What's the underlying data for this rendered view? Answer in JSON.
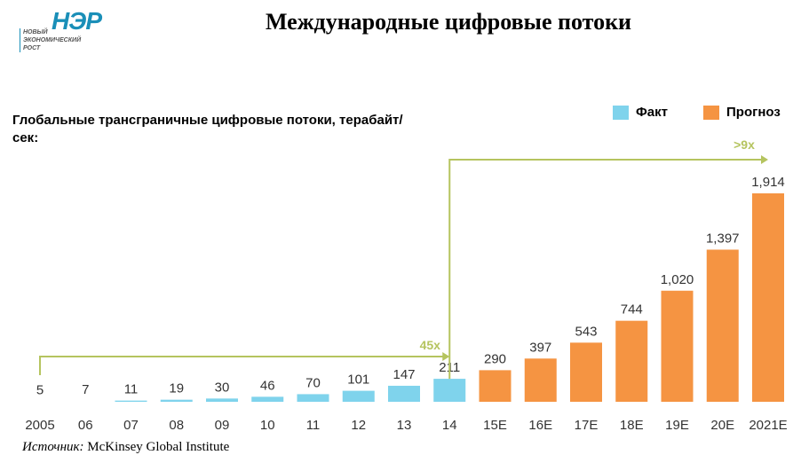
{
  "header": {
    "title": "Международные цифровые потоки",
    "logo_main": "НЭР",
    "logo_sub": [
      "НОВЫЙ",
      "ЭКОНОМИЧЕСКИЙ",
      "РОСТ"
    ]
  },
  "footer": {
    "source_label": "Источник:",
    "source_text": " McKinsey Global Institute"
  },
  "chart_data": {
    "type": "bar",
    "title": "Глобальные трансграничные цифровые потоки, терабайт/сек:",
    "categories": [
      "2005",
      "06",
      "07",
      "08",
      "09",
      "10",
      "11",
      "12",
      "13",
      "14",
      "15E",
      "16E",
      "17E",
      "18E",
      "19E",
      "20E",
      "2021E"
    ],
    "values": [
      5,
      7,
      11,
      19,
      30,
      46,
      70,
      101,
      147,
      211,
      290,
      397,
      543,
      744,
      1020,
      1397,
      1914
    ],
    "data_labels": [
      "5",
      "7",
      "11",
      "19",
      "30",
      "46",
      "70",
      "101",
      "147",
      "211",
      "290",
      "397",
      "543",
      "744",
      "1,020",
      "1,397",
      "1,914"
    ],
    "series_type": [
      "fact",
      "fact",
      "fact",
      "fact",
      "fact",
      "fact",
      "fact",
      "fact",
      "fact",
      "fact",
      "forecast",
      "forecast",
      "forecast",
      "forecast",
      "forecast",
      "forecast",
      "forecast"
    ],
    "legend": [
      {
        "key": "fact",
        "name": "Факт",
        "color": "#7fd3ec"
      },
      {
        "key": "forecast",
        "name": "Прогноз",
        "color": "#f59442"
      }
    ],
    "legend_position": "top-right",
    "annotations": [
      {
        "text": "45x",
        "from": "2005",
        "to": "14"
      },
      {
        "text": ">9x",
        "from": "14",
        "to": "2021E"
      }
    ],
    "annotation_color": "#b5c45f",
    "grid": false
  }
}
